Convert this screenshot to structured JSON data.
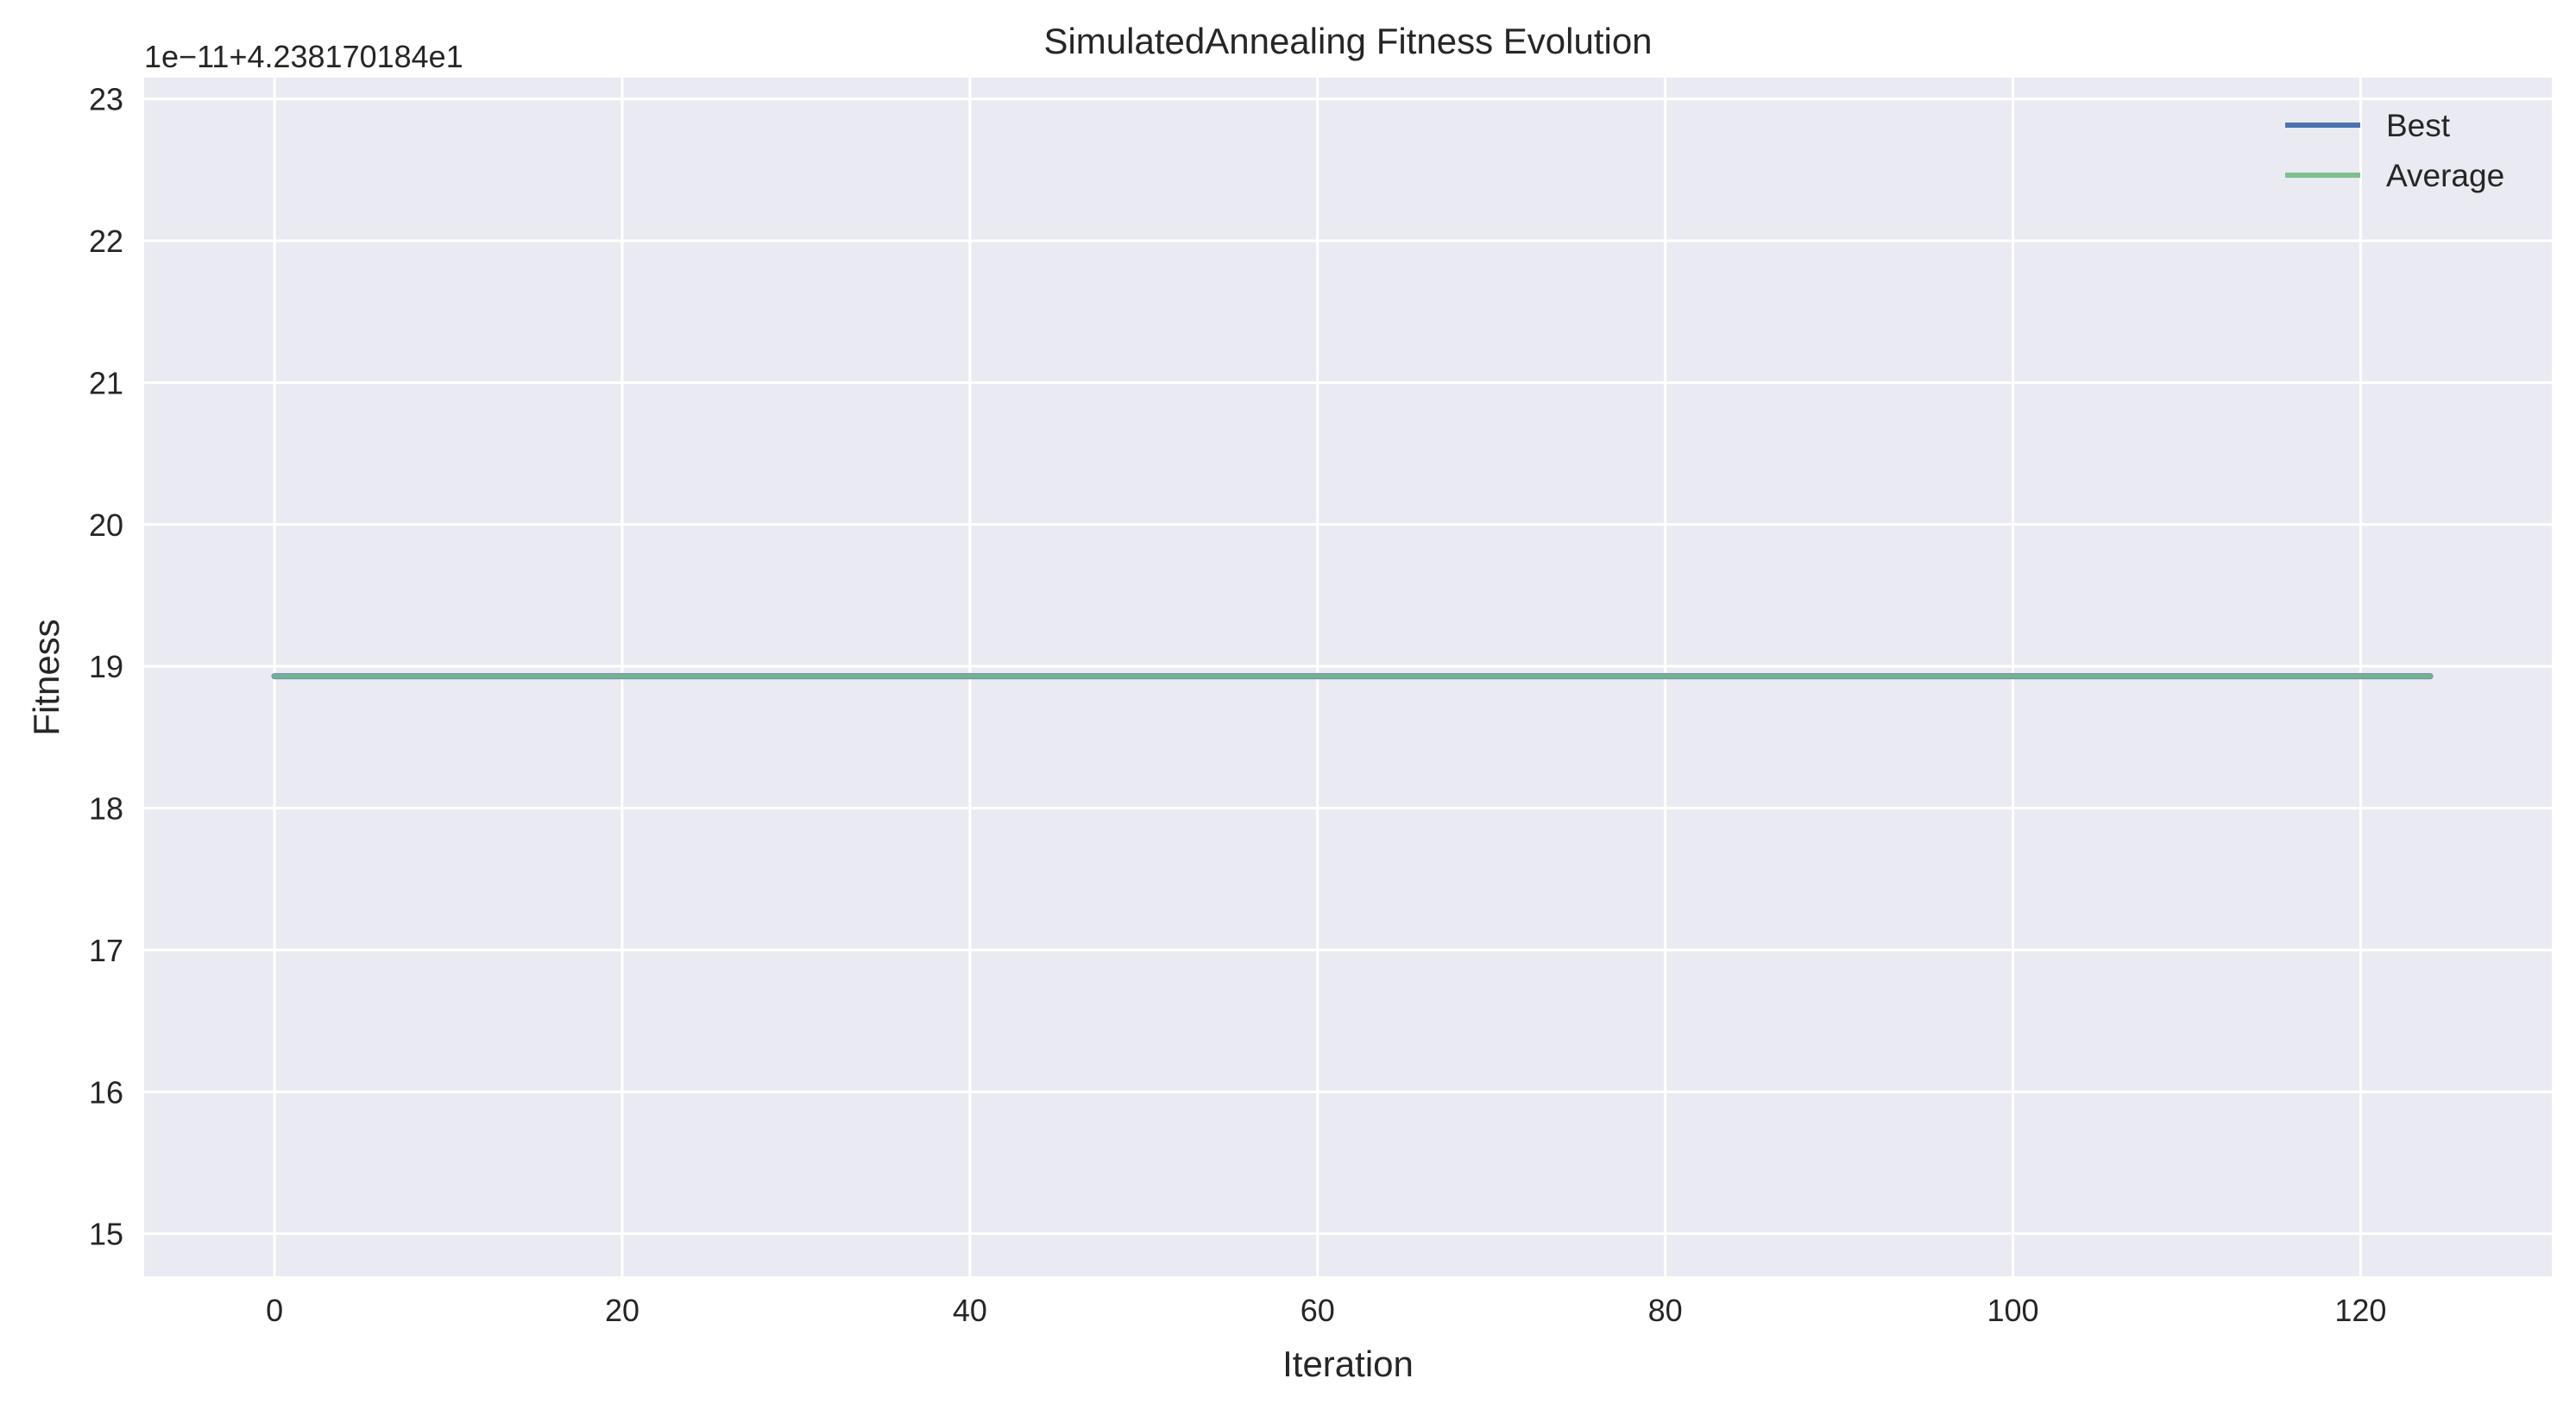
{
  "chart_data": {
    "type": "line",
    "title": "SimulatedAnnealing Fitness Evolution",
    "xlabel": "Iteration",
    "ylabel": "Fitness",
    "y_offset_label": "1e−11+4.238170184e1",
    "xlim": [
      -7.5,
      131
    ],
    "ylim": [
      14.7,
      23.15
    ],
    "xticks": [
      0,
      20,
      40,
      60,
      80,
      100,
      120
    ],
    "yticks": [
      15,
      16,
      17,
      18,
      19,
      20,
      21,
      22,
      23
    ],
    "grid": true,
    "legend_position": "top-right",
    "x_range": [
      0,
      124
    ],
    "series": [
      {
        "name": "Best",
        "color": "#4c72b0",
        "y": 18.93
      },
      {
        "name": "Average",
        "color": "#7fbf8e",
        "y": 18.93
      }
    ]
  }
}
